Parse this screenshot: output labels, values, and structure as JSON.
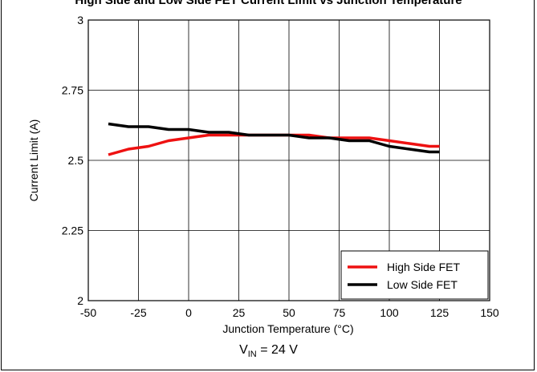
{
  "chart_data": {
    "type": "line",
    "title": "High Side and Low Side FET Current Limit vs Junction Temperature",
    "xlabel": "Junction Temperature (°C)",
    "ylabel": "Current Limit (A)",
    "xlim": [
      -50,
      150
    ],
    "ylim": [
      2,
      3
    ],
    "xticks": [
      "-50",
      "-25",
      "0",
      "25",
      "50",
      "75",
      "100",
      "125",
      "150"
    ],
    "yticks": [
      "2",
      "2.25",
      "2.5",
      "2.75",
      "3"
    ],
    "grid": true,
    "legend_position": "bottom-right",
    "caption_main": "V",
    "caption_sub": "IN",
    "caption_rest": " = 24 V",
    "series": [
      {
        "name": "High Side FET",
        "color": "#ee1111",
        "x": [
          -40,
          -30,
          -20,
          -10,
          0,
          10,
          20,
          30,
          40,
          50,
          60,
          70,
          80,
          90,
          100,
          110,
          120,
          125
        ],
        "y": [
          2.52,
          2.54,
          2.55,
          2.57,
          2.58,
          2.59,
          2.59,
          2.59,
          2.59,
          2.59,
          2.59,
          2.58,
          2.58,
          2.58,
          2.57,
          2.56,
          2.55,
          2.55
        ]
      },
      {
        "name": "Low Side FET",
        "color": "#000000",
        "x": [
          -40,
          -30,
          -20,
          -10,
          0,
          10,
          20,
          30,
          40,
          50,
          60,
          70,
          80,
          90,
          100,
          110,
          120,
          125
        ],
        "y": [
          2.63,
          2.62,
          2.62,
          2.61,
          2.61,
          2.6,
          2.6,
          2.59,
          2.59,
          2.59,
          2.58,
          2.58,
          2.57,
          2.57,
          2.55,
          2.54,
          2.53,
          2.53
        ]
      }
    ]
  }
}
